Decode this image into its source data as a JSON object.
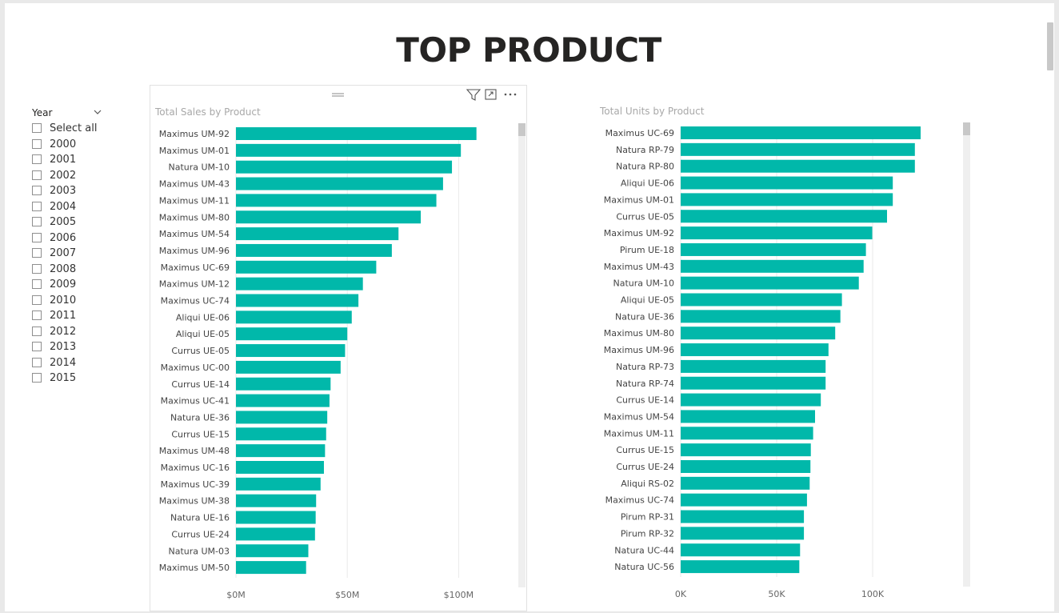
{
  "page": {
    "title": "TOP PRODUCT"
  },
  "slicer": {
    "header": "Year",
    "items": [
      "Select all",
      "2000",
      "2001",
      "2002",
      "2003",
      "2004",
      "2005",
      "2006",
      "2007",
      "2008",
      "2009",
      "2010",
      "2011",
      "2012",
      "2013",
      "2014",
      "2015"
    ]
  },
  "colors": {
    "bar": "#01b8aa",
    "gridline": "#eaeaea",
    "scrollbar": "#c8c8c8",
    "scroll_track": "#efefef"
  },
  "icons": [
    "filter-icon",
    "focus-mode-icon",
    "more-options-icon",
    "chevron-down-icon",
    "drag-grip-icon"
  ],
  "chart_data": [
    {
      "type": "bar",
      "orientation": "horizontal",
      "title": "Total Sales by Product",
      "categories": [
        "Maximus UM-92",
        "Maximus UM-01",
        "Natura UM-10",
        "Maximus UM-43",
        "Maximus UM-11",
        "Maximus UM-80",
        "Maximus UM-54",
        "Maximus UM-96",
        "Maximus UC-69",
        "Maximus UM-12",
        "Maximus UC-74",
        "Aliqui UE-06",
        "Aliqui UE-05",
        "Currus UE-05",
        "Maximus UC-00",
        "Currus UE-14",
        "Maximus UC-41",
        "Natura UE-36",
        "Currus UE-15",
        "Maximus UM-48",
        "Maximus UC-16",
        "Maximus UC-39",
        "Maximus UM-38",
        "Natura UE-16",
        "Currus UE-24",
        "Natura UM-03",
        "Maximus UM-50"
      ],
      "values": [
        108,
        101,
        97,
        93,
        90,
        83,
        73,
        70,
        63,
        57,
        55,
        52,
        50,
        49,
        47,
        42.5,
        42,
        41,
        40.5,
        40,
        39.5,
        38,
        36,
        35.8,
        35.5,
        32.5,
        31.5
      ],
      "unit": "$M",
      "xlim": [
        0,
        125
      ],
      "ticks": [
        0,
        50,
        100
      ],
      "tick_labels": [
        "$0M",
        "$50M",
        "$100M"
      ],
      "grid": true
    },
    {
      "type": "bar",
      "orientation": "horizontal",
      "title": "Total Units by Product",
      "categories": [
        "Maximus UC-69",
        "Natura RP-79",
        "Natura RP-80",
        "Aliqui UE-06",
        "Maximus UM-01",
        "Currus UE-05",
        "Maximus UM-92",
        "Pirum UE-18",
        "Maximus UM-43",
        "Natura UM-10",
        "Aliqui UE-05",
        "Natura UE-36",
        "Maximus UM-80",
        "Maximus UM-96",
        "Natura RP-73",
        "Natura RP-74",
        "Currus UE-14",
        "Maximus UM-54",
        "Maximus UM-11",
        "Currus UE-15",
        "Currus UE-24",
        "Aliqui RS-02",
        "Maximus UC-74",
        "Pirum RP-31",
        "Pirum RP-32",
        "Natura UC-44",
        "Natura UC-56"
      ],
      "values": [
        125000,
        122000,
        122000,
        110500,
        110500,
        107500,
        99800,
        96500,
        95300,
        92800,
        84000,
        83200,
        80500,
        77000,
        75500,
        75500,
        73000,
        70000,
        69000,
        67800,
        67600,
        67200,
        65800,
        64200,
        64200,
        62200,
        61800
      ],
      "unit": "units",
      "xlim": [
        0,
        145000
      ],
      "ticks": [
        0,
        50000,
        100000
      ],
      "tick_labels": [
        "0K",
        "50K",
        "100K"
      ],
      "grid": true
    }
  ]
}
